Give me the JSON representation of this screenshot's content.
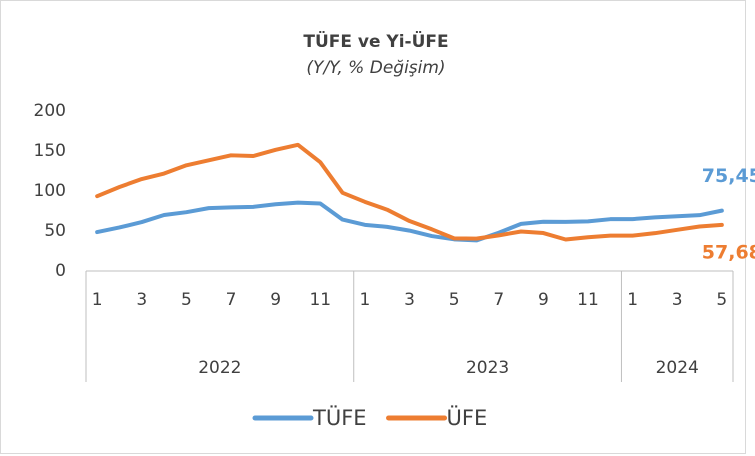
{
  "chart_data": {
    "type": "line",
    "title": "TÜFE ve Yi-ÜFE",
    "subtitle": "(Y/Y, % Değişim)",
    "categories": [
      "1",
      null,
      "3",
      null,
      "5",
      null,
      "7",
      null,
      "9",
      null,
      "11",
      null,
      "1",
      null,
      "3",
      null,
      "5",
      null,
      "7",
      null,
      "9",
      null,
      "11",
      null,
      "1",
      null,
      "3",
      null,
      "5"
    ],
    "groups": [
      "2022",
      "2023",
      "2024"
    ],
    "group_sizes": [
      12,
      12,
      5
    ],
    "series": [
      {
        "name": "TÜFE",
        "color": "#5b9bd5",
        "values": [
          48.69,
          54.44,
          61.14,
          69.97,
          73.5,
          78.62,
          79.6,
          80.21,
          83.45,
          85.51,
          84.39,
          64.27,
          57.68,
          55.18,
          50.51,
          43.68,
          39.59,
          38.21,
          47.83,
          58.94,
          61.53,
          61.36,
          61.98,
          64.77,
          64.86,
          67.07,
          68.5,
          69.8,
          75.45
        ],
        "value_labels": [
          null,
          null,
          null,
          null,
          null,
          null,
          null,
          null,
          null,
          null,
          null,
          null,
          null,
          null,
          null,
          null,
          null,
          null,
          null,
          null,
          null,
          null,
          null,
          null,
          null,
          null,
          null,
          null,
          "75,45"
        ]
      },
      {
        "name": "ÜFE",
        "color": "#ed7d31",
        "values": [
          93.53,
          105.01,
          114.97,
          121.82,
          132.16,
          138.31,
          144.61,
          143.75,
          151.5,
          157.69,
          136.02,
          97.72,
          86.46,
          76.61,
          62.44,
          52.11,
          40.76,
          40.42,
          44.5,
          49.41,
          47.44,
          39.39,
          42.25,
          44.22,
          44.2,
          47.29,
          51.47,
          55.66,
          57.68
        ],
        "value_labels": [
          null,
          null,
          null,
          null,
          null,
          null,
          null,
          null,
          null,
          null,
          null,
          null,
          null,
          null,
          null,
          null,
          null,
          null,
          null,
          null,
          null,
          null,
          null,
          null,
          null,
          null,
          null,
          null,
          "57,68"
        ]
      }
    ],
    "ylim": [
      0,
      200
    ],
    "yticks": [
      0,
      50,
      100,
      150,
      200
    ],
    "grid": false,
    "legend": "bottom"
  }
}
